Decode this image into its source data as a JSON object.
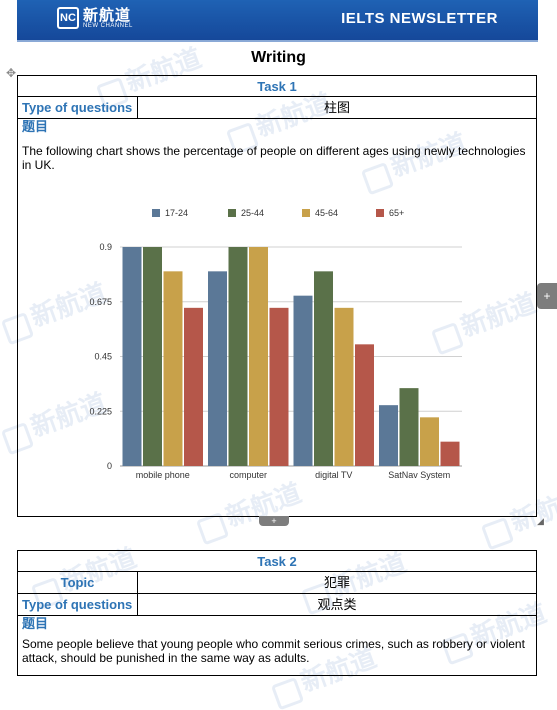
{
  "header": {
    "logo_cn": "新航道",
    "logo_en": "NEW CHANNEL",
    "logo_mark": "NC",
    "newsletter": "IELTS NEWSLETTER"
  },
  "section_title": "Writing",
  "task1": {
    "head": "Task 1",
    "type_label": "Type of questions",
    "type_value": "柱图",
    "subject_label": "题目",
    "prompt": "The following chart shows the percentage of people on different ages using newly technologies in UK."
  },
  "chart_data": {
    "type": "bar",
    "categories": [
      "mobile phone",
      "computer",
      "digital TV",
      "SatNav System"
    ],
    "series": [
      {
        "name": "17-24",
        "color": "#5b7897",
        "values": [
          0.9,
          0.8,
          0.7,
          0.25
        ]
      },
      {
        "name": "25-44",
        "color": "#5a7149",
        "values": [
          0.9,
          0.9,
          0.8,
          0.32
        ]
      },
      {
        "name": "45-64",
        "color": "#c8a14a",
        "values": [
          0.8,
          0.9,
          0.65,
          0.2
        ]
      },
      {
        "name": "65+",
        "color": "#b5574a",
        "values": [
          0.65,
          0.65,
          0.5,
          0.1
        ]
      }
    ],
    "y_ticks": [
      "0",
      "0.225",
      "0.45",
      "0.675",
      "0.9"
    ],
    "ylim": [
      0,
      0.9
    ],
    "grid": true,
    "legend": "top"
  },
  "task2": {
    "head": "Task 2",
    "topic_label": "Topic",
    "topic_value": "犯罪",
    "type_label": "Type of questions",
    "type_value": "观点类",
    "subject_label": "题目",
    "prompt": "Some people believe that young people who commit serious crimes, such as robbery or violent attack, should be punished in the same way as adults."
  },
  "icons": {
    "move": "move-handle-icon",
    "side": "expand-right-icon",
    "bottom": "expand-down-icon"
  }
}
